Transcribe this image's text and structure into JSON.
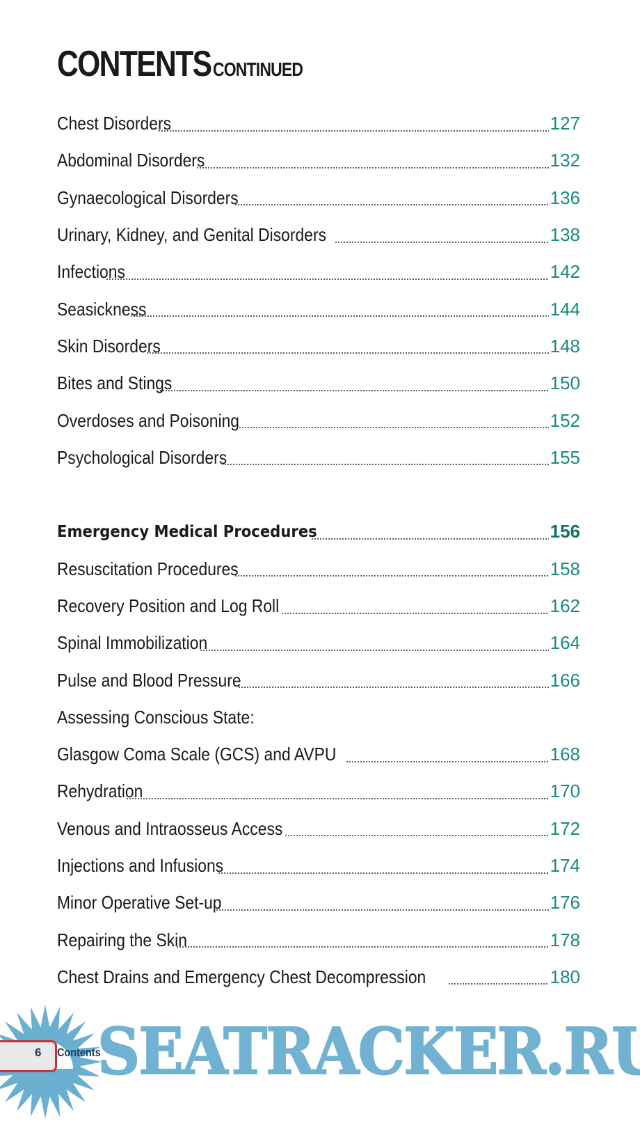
{
  "header": {
    "title": "CONTENTS",
    "subtitle": "CONTINUED"
  },
  "entries": [
    {
      "label": "Chest Disorders",
      "page": "127"
    },
    {
      "label": "Abdominal Disorders",
      "page": "132"
    },
    {
      "label": "Gynaecological Disorders",
      "page": "136"
    },
    {
      "label": "Urinary, Kidney, and Genital Disorders",
      "page": "138"
    },
    {
      "label": "Infections",
      "page": "142"
    },
    {
      "label": "Seasickness",
      "page": "144"
    },
    {
      "label": "Skin Disorders",
      "page": "148"
    },
    {
      "label": "Bites and Stings",
      "page": "150"
    },
    {
      "label": "Overdoses and Poisoning",
      "page": "152"
    },
    {
      "label": "Psychological Disorders",
      "page": "155"
    },
    {
      "label": "Emergency Medical Procedures",
      "page": "156",
      "bold": true
    },
    {
      "label": "Resuscitation Procedures",
      "page": "158"
    },
    {
      "label": "Recovery Position and Log Roll",
      "page": "162"
    },
    {
      "label": "Spinal Immobilization",
      "page": "164"
    },
    {
      "label": "Pulse and Blood Pressure",
      "page": "166"
    },
    {
      "label": "Assessing Conscious State:",
      "page": ""
    },
    {
      "label": "Glasgow Coma Scale (GCS) and AVPU",
      "page": "168"
    },
    {
      "label": "Rehydration",
      "page": "170"
    },
    {
      "label": "Venous and Intraosseus Access",
      "page": "172"
    },
    {
      "label": "Injections and Infusions",
      "page": "174"
    },
    {
      "label": "Minor Operative Set-up",
      "page": "176"
    },
    {
      "label": "Repairing the Skin",
      "page": "178"
    },
    {
      "label": "Chest Drains and Emergency Chest Decompression",
      "page": "180"
    }
  ],
  "footer": {
    "page_number": "6",
    "section": "Contents"
  },
  "watermark": {
    "text": "SEATRACKER.RU",
    "icon": "sunburst-icon"
  },
  "colors": {
    "page_number": "#1b8a80",
    "watermark": "#6aaed0",
    "footer_tab_border": "#c8303a"
  }
}
